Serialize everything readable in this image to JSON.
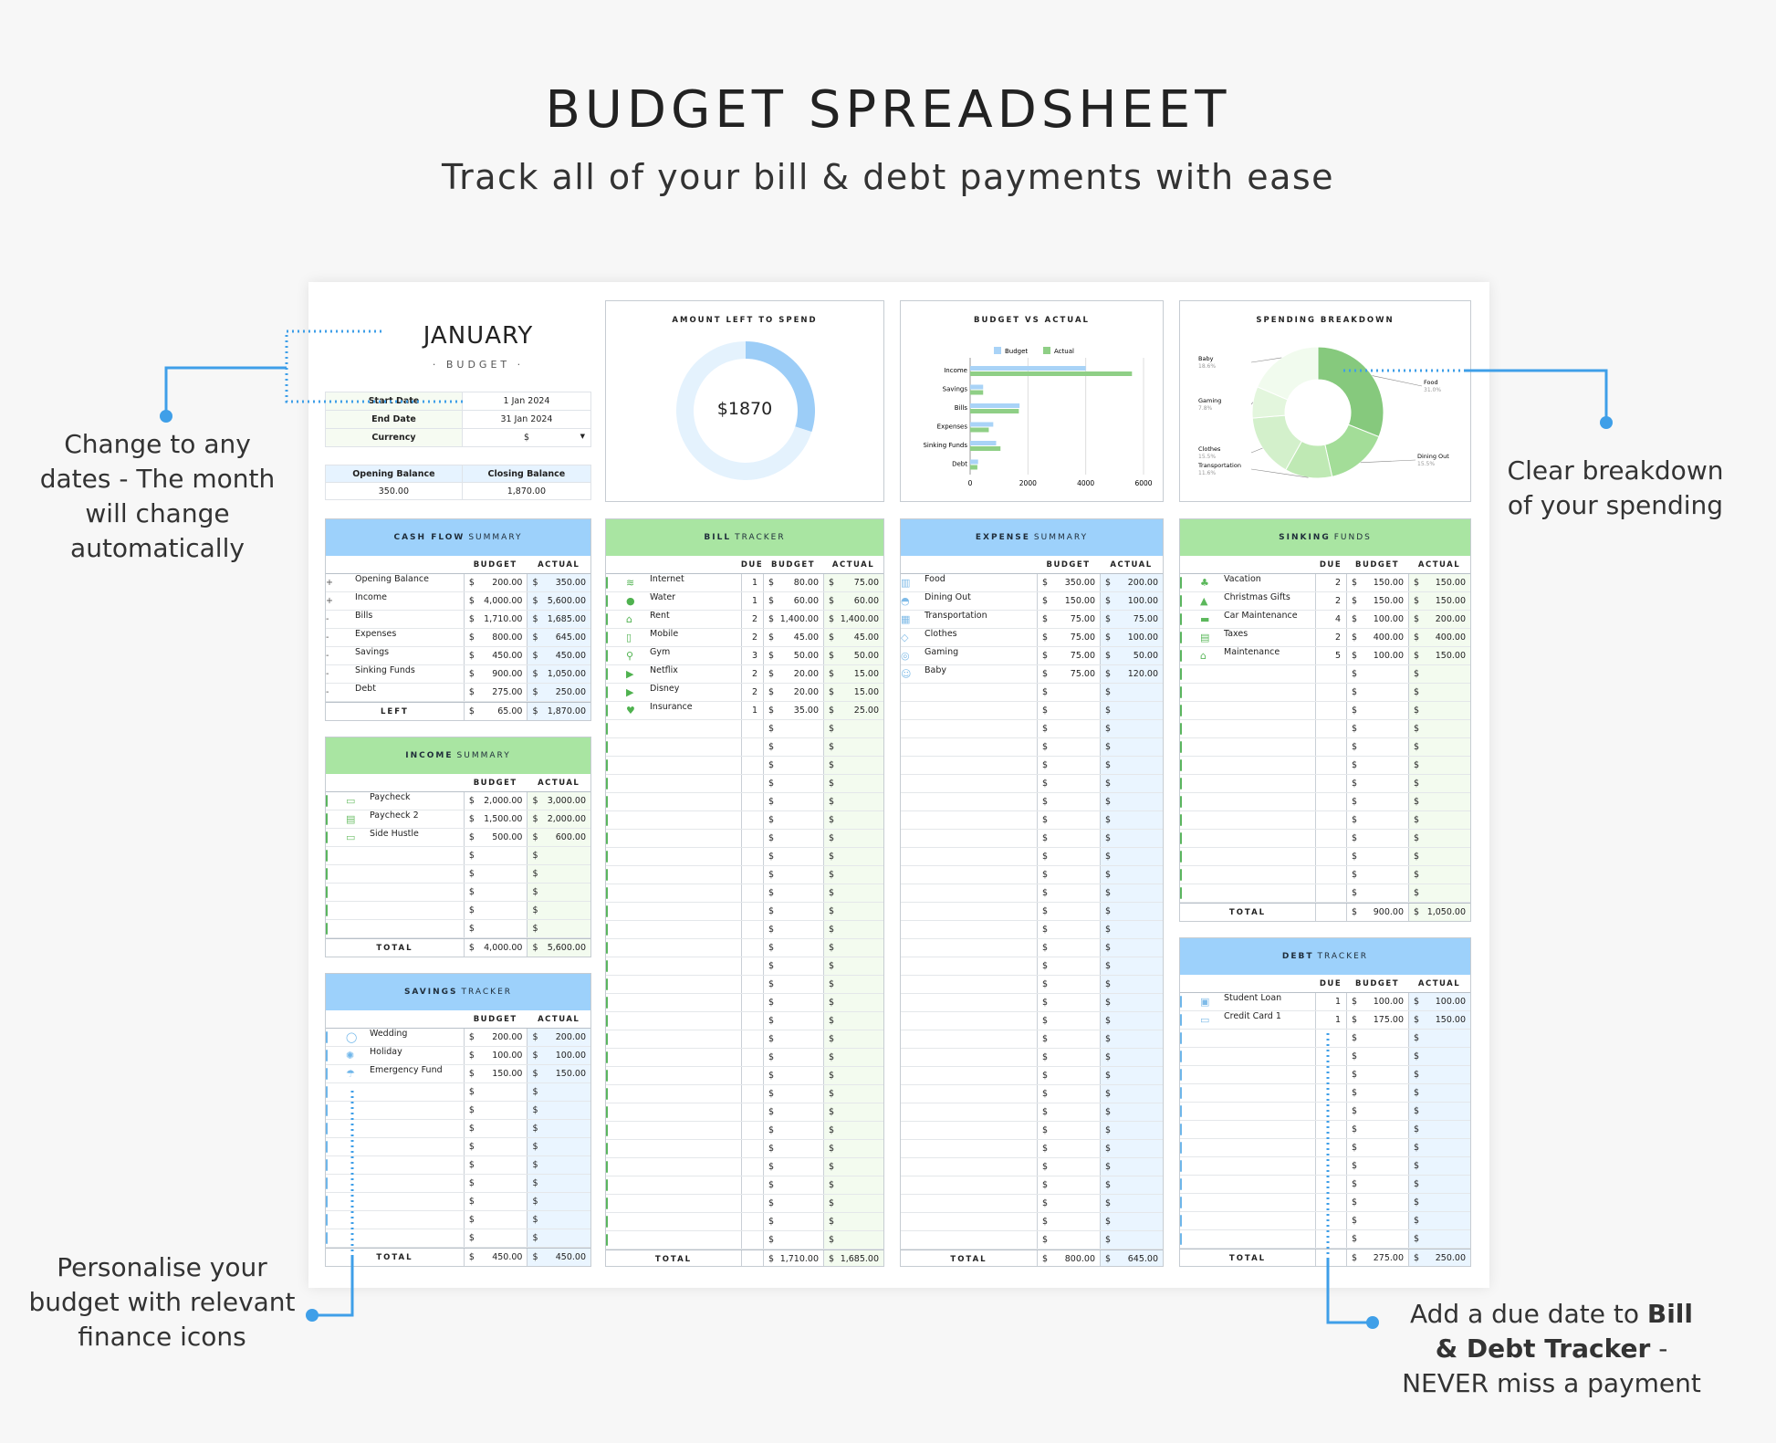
{
  "page": {
    "title": "BUDGET SPREADSHEET",
    "subtitle": "Track all of your bill & debt payments with ease"
  },
  "notes": {
    "dates": "Change to any dates - The month will change automatically",
    "breakdown": "Clear breakdown of your spending",
    "icons": "Personalise your budget with relevant finance icons",
    "due_prefix": "Add a due date to",
    "due_bold": "Bill & Debt Tracker",
    "due_suffix": "- NEVER miss a payment"
  },
  "header": {
    "month": "JANUARY",
    "sub": "· BUDGET ·",
    "fields": [
      {
        "label": "Start Date",
        "value": "1 Jan 2024"
      },
      {
        "label": "End Date",
        "value": "31 Jan 2024"
      },
      {
        "label": "Currency",
        "value": "$"
      }
    ],
    "balance": {
      "opening_label": "Opening Balance",
      "closing_label": "Closing Balance",
      "opening": "350.00",
      "closing": "1,870.00"
    }
  },
  "cash_flow": {
    "title_bold": "CASH FLOW",
    "title_rest": "SUMMARY",
    "col_budget": "BUDGET",
    "col_actual": "ACTUAL",
    "rows": [
      {
        "sign": "+",
        "label": "Opening Balance",
        "budget": "200.00",
        "actual": "350.00"
      },
      {
        "sign": "+",
        "label": "Income",
        "budget": "4,000.00",
        "actual": "5,600.00"
      },
      {
        "sign": "-",
        "label": "Bills",
        "budget": "1,710.00",
        "actual": "1,685.00"
      },
      {
        "sign": "-",
        "label": "Expenses",
        "budget": "800.00",
        "actual": "645.00"
      },
      {
        "sign": "-",
        "label": "Savings",
        "budget": "450.00",
        "actual": "450.00"
      },
      {
        "sign": "-",
        "label": "Sinking Funds",
        "budget": "900.00",
        "actual": "1,050.00"
      },
      {
        "sign": "-",
        "label": "Debt",
        "budget": "275.00",
        "actual": "250.00"
      }
    ],
    "total_label": "LEFT",
    "total_budget": "65.00",
    "total_actual": "1,870.00"
  },
  "income": {
    "title_bold": "INCOME",
    "title_rest": "SUMMARY",
    "col_budget": "BUDGET",
    "col_actual": "ACTUAL",
    "rows": [
      {
        "icon": "cash-icon",
        "glyph": "▭",
        "label": "Paycheck",
        "budget": "2,000.00",
        "actual": "3,000.00"
      },
      {
        "icon": "briefcase-icon",
        "glyph": "▤",
        "label": "Paycheck 2",
        "budget": "1,500.00",
        "actual": "2,000.00"
      },
      {
        "icon": "laptop-icon",
        "glyph": "▭",
        "label": "Side Hustle",
        "budget": "500.00",
        "actual": "600.00"
      },
      {
        "label": ""
      },
      {
        "label": ""
      },
      {
        "label": ""
      },
      {
        "label": ""
      },
      {
        "label": ""
      }
    ],
    "total_label": "TOTAL",
    "total_budget": "4,000.00",
    "total_actual": "5,600.00"
  },
  "savings": {
    "title_bold": "SAVINGS",
    "title_rest": "TRACKER",
    "col_budget": "BUDGET",
    "col_actual": "ACTUAL",
    "rows": [
      {
        "icon": "ring-icon",
        "glyph": "◯",
        "label": "Wedding",
        "budget": "200.00",
        "actual": "200.00"
      },
      {
        "icon": "sun-icon",
        "glyph": "✺",
        "label": "Holiday",
        "budget": "100.00",
        "actual": "100.00"
      },
      {
        "icon": "umbrella-icon",
        "glyph": "☂",
        "label": "Emergency Fund",
        "budget": "150.00",
        "actual": "150.00"
      },
      {
        "label": ""
      },
      {
        "label": ""
      },
      {
        "label": ""
      },
      {
        "label": ""
      },
      {
        "label": ""
      },
      {
        "label": ""
      },
      {
        "label": ""
      },
      {
        "label": ""
      },
      {
        "label": ""
      }
    ],
    "total_label": "TOTAL",
    "total_budget": "450.00",
    "total_actual": "450.00"
  },
  "bills": {
    "title_bold": "BILL",
    "title_rest": "TRACKER",
    "col_due": "DUE",
    "col_budget": "BUDGET",
    "col_actual": "ACTUAL",
    "rows": [
      {
        "icon": "wifi-icon",
        "glyph": "≋",
        "label": "Internet",
        "due": "1",
        "budget": "80.00",
        "actual": "75.00"
      },
      {
        "icon": "water-drop-icon",
        "glyph": "●",
        "label": "Water",
        "due": "1",
        "budget": "60.00",
        "actual": "60.00"
      },
      {
        "icon": "house-icon",
        "glyph": "⌂",
        "label": "Rent",
        "due": "2",
        "budget": "1,400.00",
        "actual": "1,400.00"
      },
      {
        "icon": "mobile-icon",
        "glyph": "▯",
        "label": "Mobile",
        "due": "2",
        "budget": "45.00",
        "actual": "45.00"
      },
      {
        "icon": "dumbbell-icon",
        "glyph": "⚲",
        "label": "Gym",
        "due": "3",
        "budget": "50.00",
        "actual": "50.00"
      },
      {
        "icon": "play-icon",
        "glyph": "▶",
        "label": "Netflix",
        "due": "2",
        "budget": "20.00",
        "actual": "15.00"
      },
      {
        "icon": "play-icon",
        "glyph": "▶",
        "label": "Disney",
        "due": "2",
        "budget": "20.00",
        "actual": "15.00"
      },
      {
        "icon": "heart-icon",
        "glyph": "♥",
        "label": "Insurance",
        "due": "1",
        "budget": "35.00",
        "actual": "25.00"
      }
    ],
    "empty_rows": 29,
    "total_label": "TOTAL",
    "total_budget": "1,710.00",
    "total_actual": "1,685.00"
  },
  "expenses": {
    "title_bold": "EXPENSE",
    "title_rest": "SUMMARY",
    "col_budget": "BUDGET",
    "col_actual": "ACTUAL",
    "rows": [
      {
        "icon": "basket-icon",
        "glyph": "▥",
        "label": "Food",
        "budget": "350.00",
        "actual": "200.00"
      },
      {
        "icon": "cloche-icon",
        "glyph": "◓",
        "label": "Dining Out",
        "budget": "150.00",
        "actual": "100.00"
      },
      {
        "icon": "bus-icon",
        "glyph": "▦",
        "label": "Transportation",
        "budget": "75.00",
        "actual": "75.00"
      },
      {
        "icon": "shirt-icon",
        "glyph": "◇",
        "label": "Clothes",
        "budget": "75.00",
        "actual": "100.00"
      },
      {
        "icon": "gamepad-icon",
        "glyph": "◎",
        "label": "Gaming",
        "budget": "75.00",
        "actual": "50.00"
      },
      {
        "icon": "baby-icon",
        "glyph": "☺",
        "label": "Baby",
        "budget": "75.00",
        "actual": "120.00"
      }
    ],
    "empty_rows": 31,
    "total_label": "TOTAL",
    "total_budget": "800.00",
    "total_actual": "645.00"
  },
  "sinking": {
    "title_bold": "SINKING",
    "title_rest": "FUNDS",
    "col_due": "DUE",
    "col_budget": "BUDGET",
    "col_actual": "ACTUAL",
    "rows": [
      {
        "icon": "palm-tree-icon",
        "glyph": "♣",
        "label": "Vacation",
        "due": "2",
        "budget": "150.00",
        "actual": "150.00"
      },
      {
        "icon": "christmas-tree-icon",
        "glyph": "▲",
        "label": "Christmas Gifts",
        "due": "2",
        "budget": "150.00",
        "actual": "150.00"
      },
      {
        "icon": "car-icon",
        "glyph": "▬",
        "label": "Car Maintenance",
        "due": "4",
        "budget": "100.00",
        "actual": "200.00"
      },
      {
        "icon": "tax-icon",
        "glyph": "▤",
        "label": "Taxes",
        "due": "2",
        "budget": "400.00",
        "actual": "400.00"
      },
      {
        "icon": "house-icon",
        "glyph": "⌂",
        "label": "Maintenance",
        "due": "5",
        "budget": "100.00",
        "actual": "150.00"
      }
    ],
    "empty_rows": 13,
    "total_label": "TOTAL",
    "total_budget": "900.00",
    "total_actual": "1,050.00"
  },
  "debt": {
    "title_bold": "DEBT",
    "title_rest": "TRACKER",
    "col_due": "DUE",
    "col_budget": "BUDGET",
    "col_actual": "ACTUAL",
    "rows": [
      {
        "icon": "graduation-icon",
        "glyph": "▣",
        "label": "Student Loan",
        "due": "1",
        "budget": "100.00",
        "actual": "100.00"
      },
      {
        "icon": "credit-card-icon",
        "glyph": "▭",
        "label": "Credit Card 1",
        "due": "1",
        "budget": "175.00",
        "actual": "150.00"
      }
    ],
    "empty_rows": 12,
    "total_label": "TOTAL",
    "total_budget": "275.00",
    "total_actual": "250.00"
  },
  "currency": "$",
  "colors": {
    "blue_header": "#9dd1fb",
    "green_header": "#a9e5a2",
    "blue_shade": "#eaf5ff",
    "green_shade": "#f3fbef",
    "annotation": "#3f9fe8",
    "budget_bar": "#a9d3f7",
    "actual_bar": "#8fcf86"
  },
  "chart_data": [
    {
      "type": "pie",
      "title": "AMOUNT LEFT TO SPEND",
      "center_label": "$1870",
      "values": [
        1870,
        4380
      ],
      "colors": [
        "#9ccdf7",
        "#e4f2fd"
      ]
    },
    {
      "type": "bar",
      "orientation": "horizontal",
      "title": "BUDGET VS ACTUAL",
      "categories": [
        "Income",
        "Savings",
        "Bills",
        "Expenses",
        "Sinking Funds",
        "Debt"
      ],
      "series": [
        {
          "name": "Budget",
          "values": [
            4000,
            450,
            1710,
            800,
            900,
            275
          ],
          "color": "#a9d3f7"
        },
        {
          "name": "Actual",
          "values": [
            5600,
            450,
            1685,
            645,
            1050,
            250
          ],
          "color": "#8fcf86"
        }
      ],
      "xlim": [
        0,
        6000
      ],
      "xticks": [
        "0",
        "2000",
        "4000",
        "6000"
      ],
      "legend": "top",
      "grid": true
    },
    {
      "type": "pie",
      "title": "SPENDING BREAKDOWN",
      "donut": true,
      "labels": [
        "Food",
        "Dining Out",
        "Transportation",
        "Clothes",
        "Gaming",
        "Baby"
      ],
      "percent_labels": [
        "31.0%",
        "15.5%",
        "11.6%",
        "15.5%",
        "7.8%",
        "18.6%"
      ],
      "values": [
        200,
        100,
        75,
        100,
        50,
        120
      ],
      "colors": [
        "#86c97d",
        "#a3dd98",
        "#bfe9b4",
        "#d3f0cb",
        "#e3f6dd",
        "#f1fbee"
      ]
    }
  ]
}
